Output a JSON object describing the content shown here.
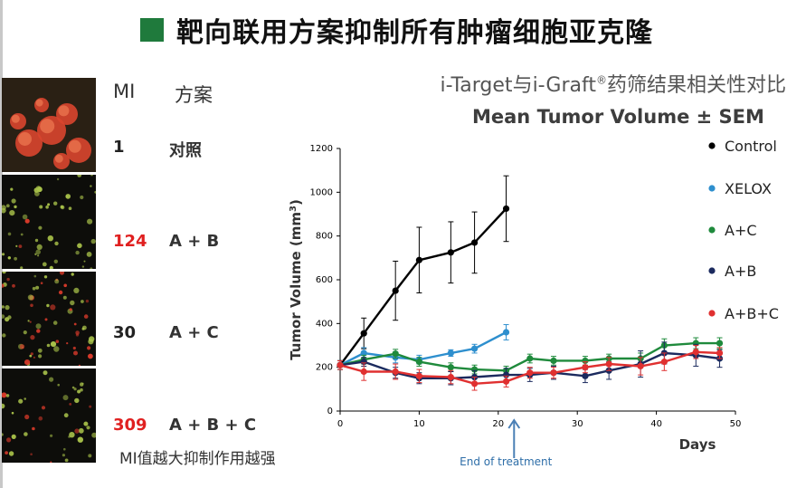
{
  "title": "靶向联用方案抑制所有肿瘤细胞亚克隆",
  "colors": {
    "title_square": "#1f7a3c",
    "mi_red": "#e02020",
    "mi_black": "#222222"
  },
  "table": {
    "header_mi": "MI",
    "header_plan": "方案",
    "rows": [
      {
        "mi": "1",
        "plan": "对照",
        "mi_color": "black"
      },
      {
        "mi": "124",
        "plan": "A + B",
        "mi_color": "red"
      },
      {
        "mi": "30",
        "plan": "A + C",
        "mi_color": "black"
      },
      {
        "mi": "309",
        "plan": "A + B + C",
        "mi_color": "red"
      }
    ],
    "note": "MI值越大抑制作用越强"
  },
  "subtitle_main": "i-Target与i-Graft",
  "subtitle_reg": "®",
  "subtitle_tail": "药筛结果相关性对比",
  "chart_subtitle": "Mean Tumor Volume ± SEM",
  "chart_data": {
    "type": "line",
    "xlabel": "Days",
    "ylabel_main": "Tumor Volume (mm",
    "ylabel_sup": "3",
    "ylabel_end": ")",
    "xlim": [
      0,
      50
    ],
    "ylim": [
      0,
      1200
    ],
    "xticks": [
      0,
      10,
      20,
      30,
      40,
      50
    ],
    "yticks": [
      0,
      200,
      400,
      600,
      800,
      1000,
      1200
    ],
    "legend_position": "right",
    "annotation": {
      "text": "End of treatment",
      "x": 22
    },
    "series": [
      {
        "name": "Control",
        "color": "#000000",
        "x": [
          0,
          3,
          7,
          10,
          14,
          17,
          21
        ],
        "y": [
          210,
          355,
          550,
          690,
          725,
          770,
          925
        ],
        "err": [
          20,
          70,
          135,
          150,
          140,
          140,
          150
        ]
      },
      {
        "name": "XELOX",
        "color": "#2e8fce",
        "x": [
          0,
          3,
          7,
          10,
          14,
          17,
          21
        ],
        "y": [
          210,
          265,
          245,
          235,
          265,
          285,
          360
        ],
        "err": [
          20,
          25,
          25,
          20,
          15,
          20,
          35
        ]
      },
      {
        "name": "A+C",
        "color": "#1f8a3c",
        "x": [
          0,
          3,
          7,
          10,
          14,
          17,
          21,
          24,
          27,
          31,
          34,
          38,
          41,
          45,
          48
        ],
        "y": [
          210,
          235,
          262,
          225,
          200,
          190,
          185,
          240,
          230,
          230,
          240,
          240,
          300,
          310,
          310
        ],
        "err": [
          20,
          20,
          20,
          20,
          20,
          20,
          20,
          20,
          20,
          20,
          20,
          25,
          30,
          25,
          25
        ]
      },
      {
        "name": "A+B",
        "color": "#1b2a5e",
        "x": [
          0,
          3,
          7,
          10,
          14,
          17,
          21,
          24,
          27,
          31,
          34,
          38,
          41,
          45,
          48
        ],
        "y": [
          210,
          225,
          175,
          150,
          150,
          155,
          165,
          165,
          175,
          160,
          185,
          215,
          265,
          255,
          240
        ],
        "err": [
          20,
          20,
          25,
          25,
          30,
          30,
          30,
          30,
          30,
          30,
          40,
          60,
          50,
          50,
          40
        ]
      },
      {
        "name": "A+B+C",
        "color": "#e03030",
        "x": [
          0,
          3,
          7,
          10,
          14,
          17,
          21,
          24,
          27,
          31,
          34,
          38,
          41,
          45,
          48
        ],
        "y": [
          210,
          180,
          180,
          160,
          155,
          125,
          135,
          175,
          175,
          200,
          215,
          205,
          225,
          270,
          265
        ],
        "err": [
          20,
          40,
          35,
          30,
          30,
          30,
          25,
          25,
          25,
          25,
          30,
          40,
          40,
          30,
          25
        ]
      }
    ]
  }
}
